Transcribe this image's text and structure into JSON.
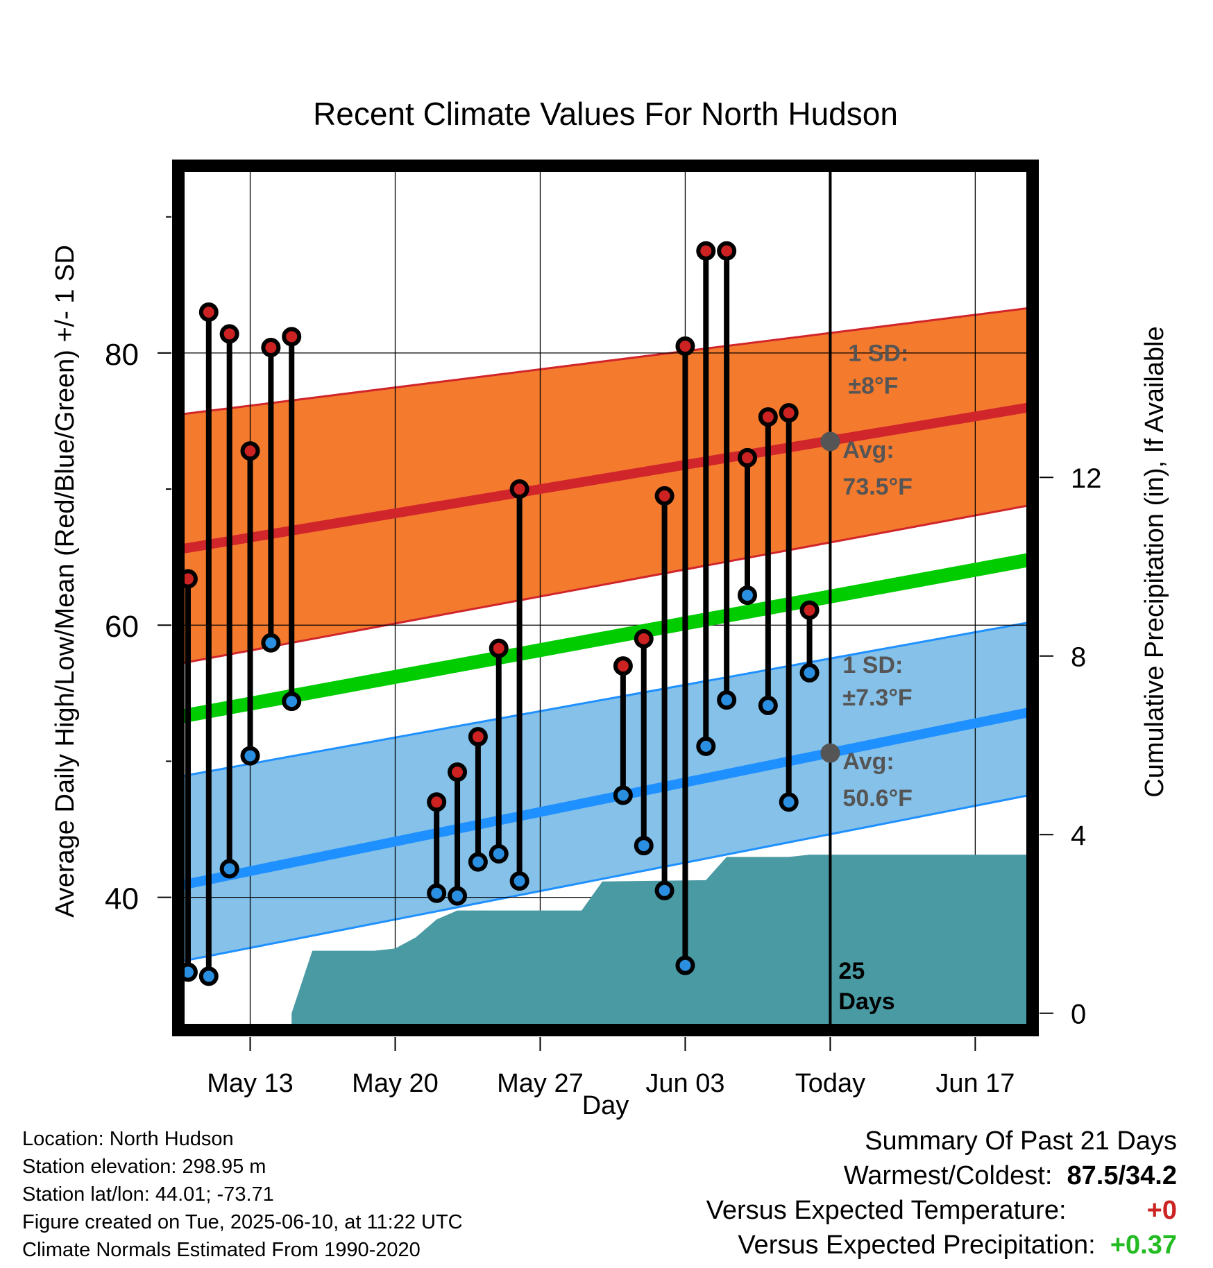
{
  "chart_data": {
    "type": "line",
    "title": "Recent Climate Values For North Hudson",
    "xlabel": "Day",
    "ylabel": "Average Daily High/Low/Mean (Red/Blue/Green) +/- 1 SD",
    "y2label": "Cumulative Precipitation (in), If Available",
    "ylim": [
      30.5,
      93.5
    ],
    "y_ticks": [
      40,
      60,
      80
    ],
    "y2lim": [
      -0.3,
      18.9
    ],
    "y2_ticks": [
      0,
      4,
      8,
      12
    ],
    "x_ticks": [
      "May 13",
      "May 20",
      "May 27",
      "Jun 03",
      "Today",
      "Jun 17"
    ],
    "x_tick_days": [
      13,
      20,
      27,
      34,
      41,
      48
    ],
    "x_range_days": [
      9.7,
      50.6
    ],
    "today_day": 41,
    "normals": {
      "high_mean_start": 65.6,
      "high_mean_end": 76.0,
      "high_upper_start": 75.5,
      "high_upper_end": 83.3,
      "high_lower_start": 57.2,
      "high_lower_end": 68.8,
      "mean_start": 53.3,
      "mean_end": 64.8,
      "low_mean_start": 40.9,
      "low_mean_end": 53.6,
      "low_upper_start": 48.9,
      "low_upper_end": 60.2,
      "low_lower_start": 35.3,
      "low_lower_end": 47.5
    },
    "series": [
      {
        "name": "High",
        "color": "#cc2222",
        "values": [
          {
            "day": 10,
            "y": 63.4
          },
          {
            "day": 11,
            "y": 83.0
          },
          {
            "day": 12,
            "y": 81.4
          },
          {
            "day": 13,
            "y": 72.8
          },
          {
            "day": 14,
            "y": 80.4
          },
          {
            "day": 15,
            "y": 81.2
          },
          {
            "day": 22,
            "y": 47.0
          },
          {
            "day": 23,
            "y": 49.2
          },
          {
            "day": 24,
            "y": 51.8
          },
          {
            "day": 25,
            "y": 58.3
          },
          {
            "day": 26,
            "y": 70.0
          },
          {
            "day": 31,
            "y": 57.0
          },
          {
            "day": 32,
            "y": 59.0
          },
          {
            "day": 33,
            "y": 69.5
          },
          {
            "day": 34,
            "y": 80.5
          },
          {
            "day": 35,
            "y": 87.5
          },
          {
            "day": 36,
            "y": 87.5
          },
          {
            "day": 37,
            "y": 72.3
          },
          {
            "day": 38,
            "y": 75.3
          },
          {
            "day": 39,
            "y": 75.6
          },
          {
            "day": 40,
            "y": 61.1
          }
        ]
      },
      {
        "name": "Low",
        "color": "#2a8fe0",
        "values": [
          {
            "day": 10,
            "y": 34.5
          },
          {
            "day": 11,
            "y": 34.2
          },
          {
            "day": 12,
            "y": 42.1
          },
          {
            "day": 13,
            "y": 50.4
          },
          {
            "day": 14,
            "y": 58.7
          },
          {
            "day": 15,
            "y": 54.4
          },
          {
            "day": 22,
            "y": 40.3
          },
          {
            "day": 23,
            "y": 40.1
          },
          {
            "day": 24,
            "y": 42.6
          },
          {
            "day": 25,
            "y": 43.2
          },
          {
            "day": 26,
            "y": 41.2
          },
          {
            "day": 31,
            "y": 47.5
          },
          {
            "day": 32,
            "y": 43.8
          },
          {
            "day": 33,
            "y": 40.5
          },
          {
            "day": 34,
            "y": 35.0
          },
          {
            "day": 35,
            "y": 51.1
          },
          {
            "day": 36,
            "y": 54.5
          },
          {
            "day": 37,
            "y": 62.2
          },
          {
            "day": 38,
            "y": 54.1
          },
          {
            "day": 39,
            "y": 47.0
          },
          {
            "day": 40,
            "y": 56.5
          }
        ]
      }
    ],
    "precipitation_cumulative": [
      {
        "day": 15,
        "y": 0.0
      },
      {
        "day": 16,
        "y": 1.4
      },
      {
        "day": 19,
        "y": 1.4
      },
      {
        "day": 20,
        "y": 1.45
      },
      {
        "day": 21,
        "y": 1.7
      },
      {
        "day": 22,
        "y": 2.1
      },
      {
        "day": 23,
        "y": 2.3
      },
      {
        "day": 29,
        "y": 2.3
      },
      {
        "day": 30,
        "y": 2.95
      },
      {
        "day": 35,
        "y": 2.98
      },
      {
        "day": 36,
        "y": 3.5
      },
      {
        "day": 39,
        "y": 3.5
      },
      {
        "day": 40,
        "y": 3.55
      },
      {
        "day": 50.6,
        "y": 3.55
      }
    ],
    "annotations": {
      "high_sd_line1": "1 SD:",
      "high_sd_line2": "±8°F",
      "high_avg_line1": "Avg:",
      "high_avg_line2": "73.5°F",
      "high_avg_value": 73.5,
      "low_sd_line1": "1 SD:",
      "low_sd_line2": "±7.3°F",
      "low_avg_line1": "Avg:",
      "low_avg_line2": "50.6°F",
      "low_avg_value": 50.6,
      "days_line1": "25",
      "days_line2": "Days"
    },
    "colors": {
      "high_band": "#f47a2e",
      "high_line": "#d0252a",
      "mean_line": "#00cc00",
      "low_band": "#85c1e9",
      "low_line": "#1e90ff",
      "precip": "#4a9aa3",
      "annotation": "#555555",
      "marker_high": "#cc2222",
      "marker_low": "#2a8fe0"
    }
  },
  "footer": {
    "location": "Location: North Hudson",
    "elevation": "Station elevation: 298.95 m",
    "latlon": "Station lat/lon: 44.01; -73.71",
    "created": "Figure created on Tue, 2025-06-10, at 11:22 UTC",
    "normals": "Climate Normals Estimated From 1990-2020"
  },
  "summary": {
    "heading": "Summary Of Past 21 Days",
    "warm_cold_label": "Warmest/Coldest:",
    "warm_cold_value": "87.5/34.2",
    "temp_label": "Versus Expected Temperature:",
    "temp_value": "+0",
    "temp_color": "#cc2222",
    "precip_label": "Versus Expected Precipitation:",
    "precip_value": "+0.37",
    "precip_color": "#22bb22"
  }
}
